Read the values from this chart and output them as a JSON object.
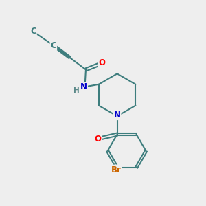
{
  "bg_color": "#eeeeee",
  "bond_color": "#3d7d7d",
  "bond_width": 1.5,
  "atom_colors": {
    "O": "#ff0000",
    "N": "#0000cc",
    "H": "#5a8888",
    "Br": "#cc6600",
    "C": "#3d7d7d"
  },
  "font_size_atom": 8.5,
  "font_size_small": 7.5
}
